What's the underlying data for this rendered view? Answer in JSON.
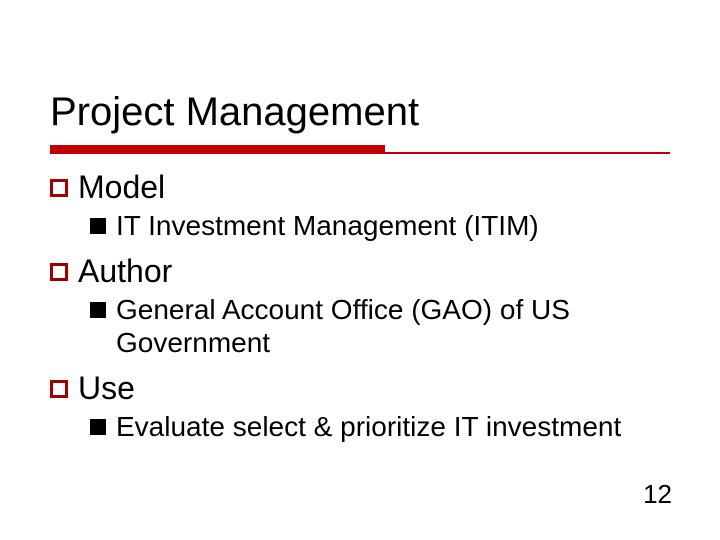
{
  "title": "Project Management",
  "accent_color": "#c00000",
  "bullet_outline_color": "#a00000",
  "bullet_solid_color": "#000000",
  "items": [
    {
      "label": "Model",
      "sub": "IT Investment Management (ITIM)"
    },
    {
      "label": "Author",
      "sub": "General Account Office (GAO) of US Government"
    },
    {
      "label": "Use",
      "sub": "Evaluate select & prioritize IT investment"
    }
  ],
  "page_number": "12"
}
